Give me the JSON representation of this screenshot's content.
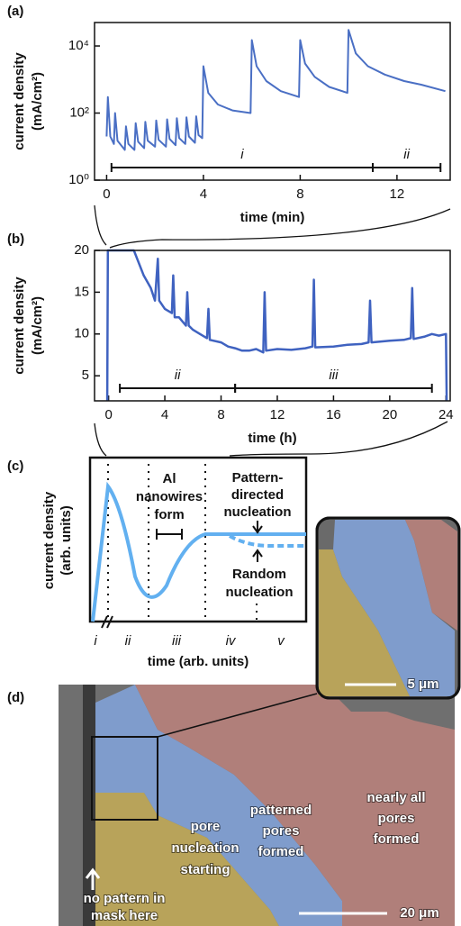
{
  "chart_data": [
    {
      "type": "line",
      "label": "(a)",
      "log_y": true,
      "color": "#4a6fc4",
      "ylabel": [
        "current density",
        "(mA/cm²)"
      ],
      "xlabel": "time (min)",
      "xlim": [
        -0.5,
        14.2
      ],
      "ylim": [
        1,
        50000
      ],
      "xticks": [
        0,
        4,
        8,
        12
      ],
      "yticks": [
        {
          "value": 1,
          "label": "10⁰"
        },
        {
          "value": 100,
          "label": "10²"
        },
        {
          "value": 10000,
          "label": "10⁴"
        }
      ],
      "x": [
        0.0,
        0.05,
        0.15,
        0.3,
        0.35,
        0.45,
        0.75,
        0.8,
        0.9,
        1.15,
        1.2,
        1.3,
        1.55,
        1.6,
        1.7,
        2.0,
        2.05,
        2.15,
        2.45,
        2.5,
        2.6,
        2.85,
        2.9,
        3.0,
        3.25,
        3.3,
        3.4,
        3.65,
        3.7,
        3.8,
        3.95,
        4.0,
        4.2,
        4.6,
        5.2,
        5.95,
        6.0,
        6.2,
        6.6,
        7.2,
        7.95,
        8.0,
        8.2,
        8.6,
        9.2,
        9.95,
        10.0,
        10.3,
        10.8,
        11.5,
        12.3,
        13.0,
        14.0
      ],
      "values": [
        20,
        300,
        20,
        12,
        100,
        15,
        8,
        40,
        12,
        8,
        50,
        14,
        9,
        55,
        15,
        10,
        60,
        16,
        10,
        65,
        17,
        11,
        70,
        18,
        12,
        75,
        20,
        13,
        80,
        22,
        18,
        2500,
        400,
        180,
        120,
        100,
        15000,
        2500,
        900,
        450,
        300,
        15000,
        3000,
        1200,
        600,
        400,
        30000,
        6000,
        2500,
        1400,
        900,
        700,
        450
      ],
      "brackets": [
        {
          "label": "i",
          "x": [
            0.2,
            11
          ]
        },
        {
          "label": "ii",
          "x": [
            11,
            13.8
          ]
        }
      ]
    },
    {
      "type": "line",
      "label": "(b)",
      "log_y": false,
      "color": "#3f62c0",
      "ylabel": [
        "current density",
        "(mA/cm²)"
      ],
      "xlabel": "time (h)",
      "xlim": [
        -1,
        24.3
      ],
      "ylim": [
        2,
        20
      ],
      "xticks": [
        0,
        4,
        8,
        12,
        16,
        20,
        24
      ],
      "yticks": [
        5,
        10,
        15,
        20
      ],
      "x": [
        -0.1,
        -0.05,
        1.8,
        2.5,
        3,
        3.3,
        3.5,
        3.6,
        4,
        4.5,
        4.6,
        4.7,
        5,
        5.5,
        5.6,
        5.7,
        6,
        6.5,
        7,
        7.1,
        7.2,
        8,
        8.5,
        9,
        9.5,
        10,
        10.5,
        11,
        11.1,
        11.2,
        12,
        13,
        14,
        14.5,
        14.6,
        14.7,
        16,
        17,
        18,
        18.5,
        18.6,
        18.7,
        20,
        21,
        21.5,
        21.6,
        21.7,
        22.5,
        23,
        23.5,
        24,
        24.05
      ],
      "values": [
        2,
        20,
        20,
        17,
        15.5,
        14,
        19,
        14,
        13,
        12.5,
        17,
        12,
        12,
        11,
        15,
        11,
        10.5,
        10,
        9.5,
        13,
        9.3,
        9,
        8.5,
        8.3,
        8,
        8,
        8.2,
        7.8,
        15,
        8,
        8.2,
        8.1,
        8.3,
        8.5,
        16.5,
        8.4,
        8.5,
        8.7,
        8.8,
        9,
        14,
        9,
        9.2,
        9.3,
        9.5,
        15.5,
        9.4,
        9.7,
        10,
        9.8,
        10,
        2
      ],
      "brackets": [
        {
          "label": "ii",
          "x": [
            0.8,
            9
          ]
        },
        {
          "label": "iii",
          "x": [
            9,
            23
          ]
        }
      ]
    }
  ],
  "panel_c": {
    "label": "(c)",
    "ylabel": [
      "current density",
      "(arb. units)"
    ],
    "xlabel": "time (arb. units)",
    "al_nanowires": [
      "Al",
      "nanowires",
      "form"
    ],
    "pattern": [
      "Pattern-",
      "directed",
      "nucleation"
    ],
    "random": [
      "Random",
      "nucleation"
    ],
    "stages": [
      "i",
      "ii",
      "iii",
      "iv",
      "v"
    ],
    "inset_scale": "5 μm"
  },
  "panel_d": {
    "label": "(d)",
    "pore_nucleation": [
      "pore",
      "nucleation",
      "starting"
    ],
    "patterned": [
      "patterned",
      "pores",
      "formed"
    ],
    "nearly_all": [
      "nearly all",
      "pores",
      "formed"
    ],
    "no_pattern": [
      "no pattern in",
      "mask here"
    ],
    "scale": "20 μm"
  }
}
